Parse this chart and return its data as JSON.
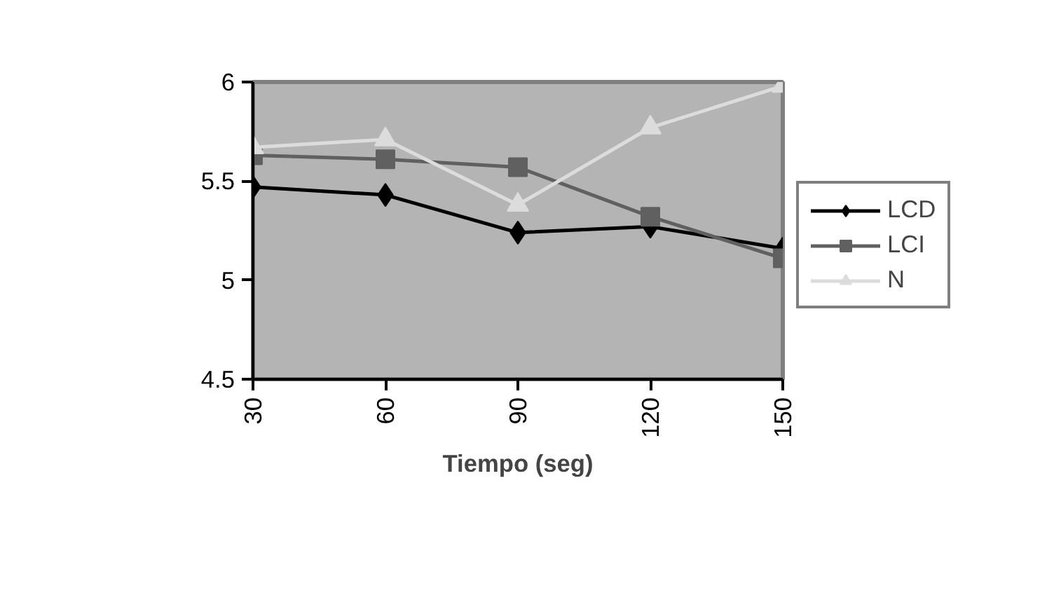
{
  "chart_data": {
    "type": "line",
    "xlabel": "Tiempo (seg)",
    "x": [
      30,
      60,
      90,
      120,
      150
    ],
    "xlim": [
      30,
      150
    ],
    "xticks": [
      30,
      60,
      90,
      120,
      150
    ],
    "ylim": [
      4.5,
      6
    ],
    "yticks": [
      4.5,
      5,
      5.5,
      6
    ],
    "grid": false,
    "legend": "right",
    "line_style": "solid",
    "series": [
      {
        "name": "LCD",
        "color": "#000000",
        "marker": "diamond",
        "values": [
          5.47,
          5.43,
          5.24,
          5.27,
          5.16
        ]
      },
      {
        "name": "LCI",
        "color": "#606060",
        "marker": "square",
        "values": [
          5.63,
          5.61,
          5.57,
          5.32,
          5.11
        ]
      },
      {
        "name": "N",
        "color": "#dcdcdc",
        "marker": "triangle",
        "values": [
          5.67,
          5.71,
          5.38,
          5.77,
          5.98
        ]
      }
    ]
  }
}
